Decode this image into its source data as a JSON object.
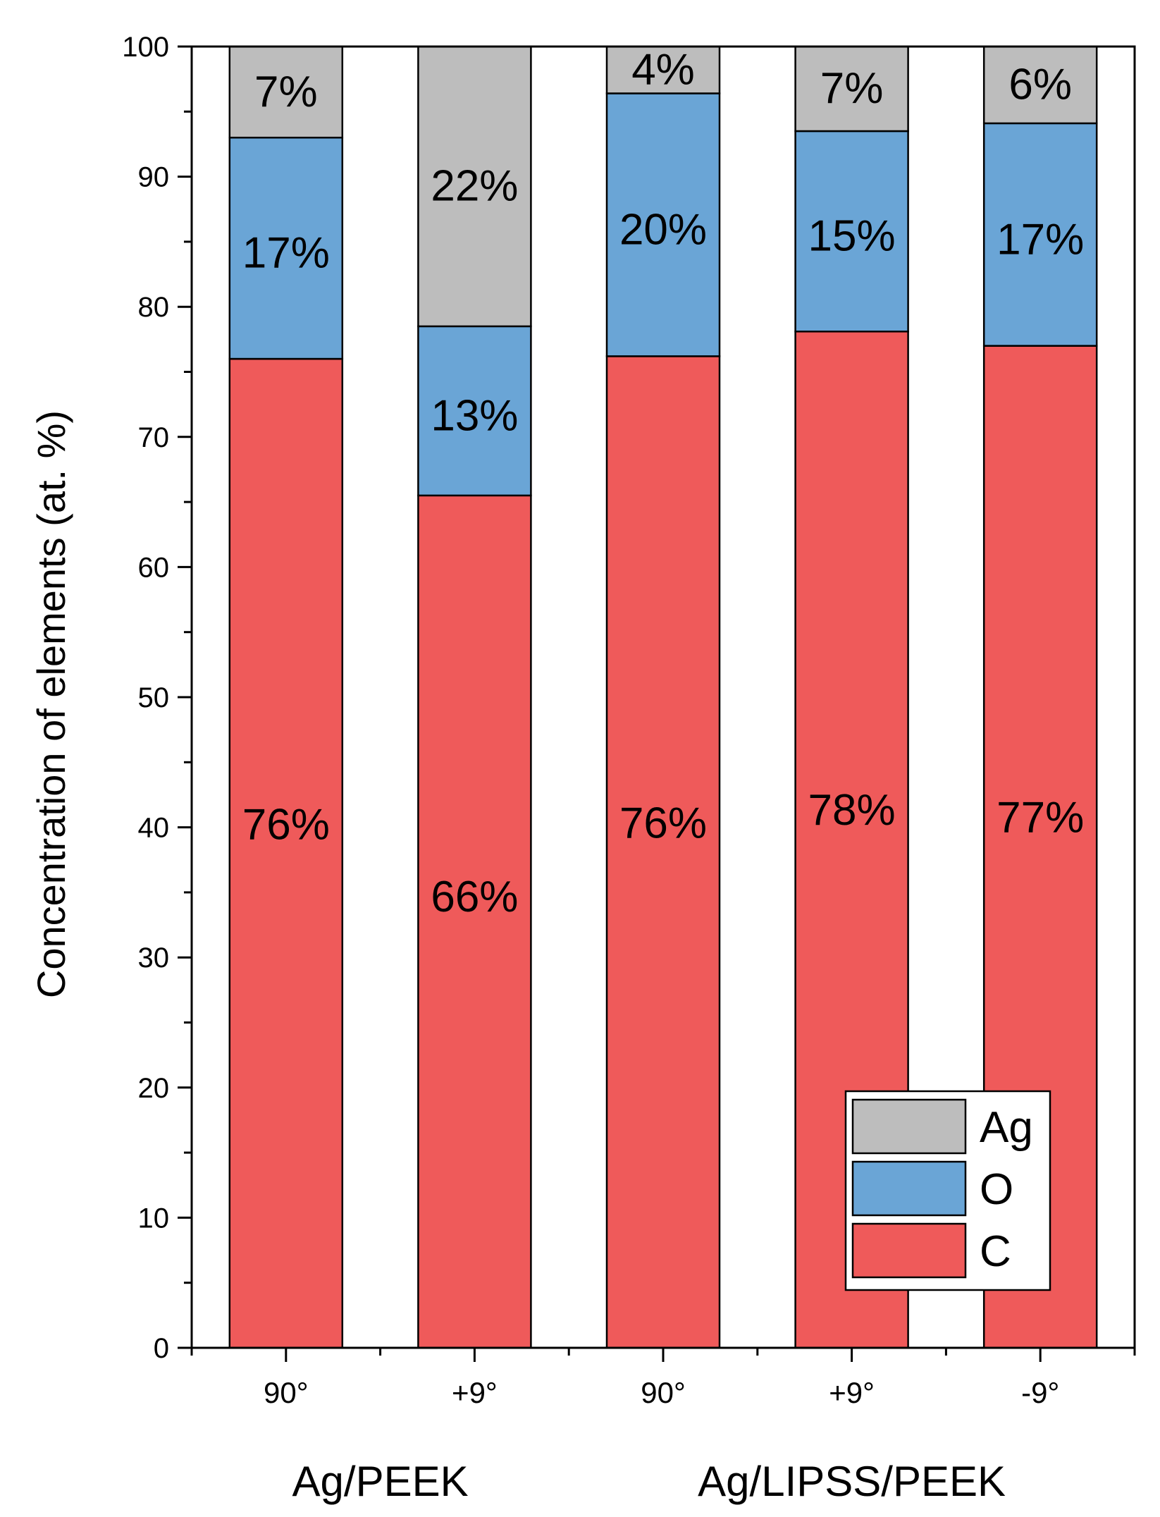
{
  "chart_data": {
    "type": "bar",
    "stacked": true,
    "title": "",
    "xlabel": "",
    "ylabel": "Concentration of elements (at. %)",
    "ylim": [
      0,
      100
    ],
    "yticks": [
      0,
      10,
      20,
      30,
      40,
      50,
      60,
      70,
      80,
      90,
      100
    ],
    "categories": [
      "90°",
      "+9°",
      "90°",
      "+9°",
      "-9°"
    ],
    "groups": [
      {
        "name": "Ag/PEEK",
        "members": [
          0,
          1
        ]
      },
      {
        "name": "Ag/LIPSS/PEEK",
        "members": [
          2,
          3,
          4
        ]
      }
    ],
    "series": [
      {
        "name": "C",
        "color": "#ef5a5a",
        "values": [
          76,
          65.5,
          76.2,
          78.1,
          77
        ],
        "labels": [
          "76%",
          "66%",
          "76%",
          "78%",
          "77%"
        ]
      },
      {
        "name": "O",
        "color": "#6aa5d6",
        "values": [
          17,
          13,
          20.2,
          15.4,
          17.1
        ],
        "labels": [
          "17%",
          "13%",
          "20%",
          "15%",
          "17%"
        ]
      },
      {
        "name": "Ag",
        "color": "#bdbdbd",
        "values": [
          7,
          21.5,
          3.6,
          6.5,
          5.9
        ],
        "labels": [
          "7%",
          "22%",
          "4%",
          "7%",
          "6%"
        ]
      }
    ],
    "legend": {
      "position": "bottom-right",
      "order": [
        "Ag",
        "O",
        "C"
      ]
    },
    "grid": false
  }
}
